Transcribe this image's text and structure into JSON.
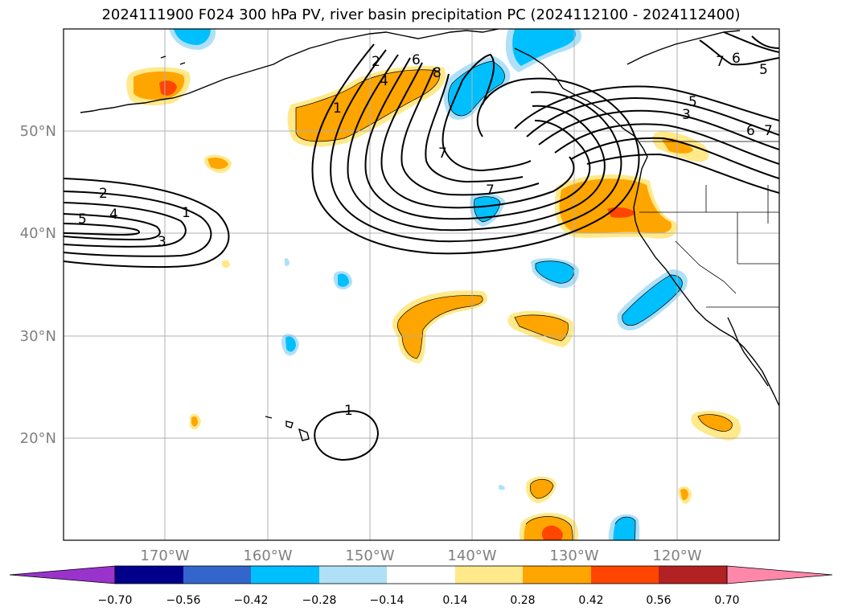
{
  "title": "2024111900 F024 300 hPa PV, river basin precipitation PC (2024112100 - 2024112400)",
  "lat_labels": [
    "20°N",
    "30°N",
    "40°N",
    "50°N"
  ],
  "lon_labels": [
    "170°W",
    "160°W",
    "150°W",
    "140°W",
    "130°W",
    "120°W"
  ],
  "contour_labels": [
    "2",
    "4",
    "5",
    "3",
    "1",
    "1",
    "2",
    "4",
    "6",
    "8",
    "7",
    "7",
    "5",
    "3",
    "6",
    "7",
    "7",
    "6",
    "5",
    "1"
  ],
  "colorbar": {
    "ticks": [
      "−0.70",
      "−0.56",
      "−0.42",
      "−0.28",
      "−0.14",
      "0.14",
      "0.28",
      "0.42",
      "0.56",
      "0.70"
    ],
    "colors": [
      "#9933cc",
      "#00008b",
      "#3366cc",
      "#00bfff",
      "#afe0f8",
      "#ffffff",
      "#ffe98a",
      "#ffa500",
      "#ff4500",
      "#b22222",
      "#ff88aa"
    ]
  },
  "colors": {
    "grid": "#b0b0b0",
    "axis_label": "#808080",
    "contour": "#000000"
  }
}
